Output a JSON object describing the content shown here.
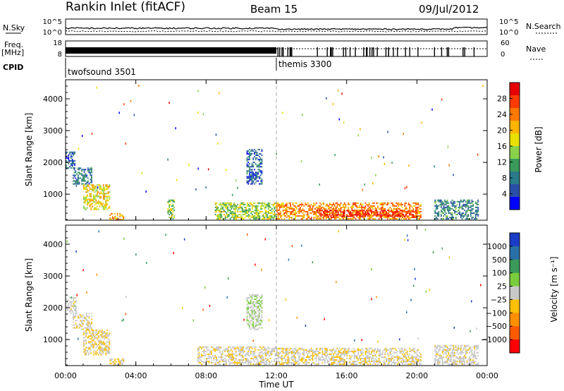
{
  "header": {
    "title": "Rankin Inlet (fitACF)",
    "beam": "Beam 15",
    "date": "09/Jul/2012"
  },
  "top_panels": {
    "nsky_label": "N.Sky",
    "nsky_ticks": [
      "10^5",
      "10^0"
    ],
    "nsearch_label": "N.Search",
    "nsearch_ticks": [
      "10^5",
      "10^0"
    ],
    "freq_label": "Freq.",
    "freq_unit": "[MHz]",
    "freq_ticks": [
      "18",
      "8"
    ],
    "nave_label": "Nave",
    "nave_ticks": [
      "60",
      "0"
    ],
    "cpid_label": "CPID",
    "modes": [
      {
        "name": "twofsound 3501",
        "start_hour": 0
      },
      {
        "name": "themis 3300",
        "start_hour": 12
      }
    ]
  },
  "axes": {
    "x_ticks": [
      "00:00",
      "04:00",
      "08:00",
      "12:00",
      "16:00",
      "20:00",
      "00:00"
    ],
    "xlabel": "Time UT",
    "ylabel": "Slant Range [km]",
    "y_ticks": [
      "4000",
      "3000",
      "2000",
      "1000"
    ]
  },
  "colorbars": {
    "power": {
      "label": "Power [dB]",
      "ticks": [
        "28",
        "24",
        "20",
        "16",
        "12",
        "8",
        "4"
      ],
      "colors": [
        "#0000ff",
        "#2a4fa8",
        "#2a7a8a",
        "#3a9a5a",
        "#8ad24a",
        "#e8e000",
        "#ffb400",
        "#ff7800",
        "#ff3c00",
        "#e80000"
      ]
    },
    "velocity": {
      "label": "Velocity [m s⁻¹]",
      "ticks": [
        "1000",
        "500",
        "100",
        "25",
        "−25",
        "−100",
        "−500",
        "−1000"
      ],
      "colors": [
        "#ff0000",
        "#ff5a00",
        "#ff9000",
        "#ffc000",
        "#c8c8c8",
        "#7acc3c",
        "#3a9a5a",
        "#2a70a8",
        "#1a3cc8"
      ]
    }
  },
  "chart_data": [
    {
      "type": "heatmap",
      "title": "Power",
      "xlabel": "Time UT",
      "ylabel": "Slant Range [km]",
      "xlim": [
        0,
        24
      ],
      "ylim": [
        180,
        4600
      ],
      "colorbar_range": [
        0,
        30
      ],
      "regions": [
        {
          "t0": 0.0,
          "t1": 0.5,
          "r0": 1800,
          "r1": 2300,
          "value": 5
        },
        {
          "t0": 0.4,
          "t1": 1.5,
          "r0": 1300,
          "r1": 1800,
          "value": 7
        },
        {
          "t0": 1.0,
          "t1": 2.5,
          "r0": 500,
          "r1": 1300,
          "value": 17
        },
        {
          "t0": 2.5,
          "t1": 3.3,
          "r0": 180,
          "r1": 400,
          "value": 20
        },
        {
          "t0": 5.8,
          "t1": 6.2,
          "r0": 200,
          "r1": 800,
          "value": 14
        },
        {
          "t0": 10.3,
          "t1": 11.2,
          "r0": 1300,
          "r1": 2400,
          "value": 6
        },
        {
          "t0": 8.5,
          "t1": 12.0,
          "r0": 200,
          "r1": 700,
          "value": 14
        },
        {
          "t0": 12.0,
          "t1": 20.2,
          "r0": 200,
          "r1": 700,
          "value": 22
        },
        {
          "t0": 14.3,
          "t1": 20.0,
          "r0": 280,
          "r1": 480,
          "value": 28
        },
        {
          "t0": 21.0,
          "t1": 23.5,
          "r0": 200,
          "r1": 800,
          "value": 8
        }
      ]
    },
    {
      "type": "heatmap",
      "title": "Velocity",
      "xlabel": "Time UT",
      "ylabel": "Slant Range [km]",
      "xlim": [
        0,
        24
      ],
      "ylim": [
        180,
        4600
      ],
      "colorbar_range": [
        -1000,
        1000
      ],
      "regions": [
        {
          "t0": 0.0,
          "t1": 0.6,
          "r0": 1800,
          "r1": 2300,
          "value": 0
        },
        {
          "t0": 0.4,
          "t1": 1.5,
          "r0": 1300,
          "r1": 1800,
          "value": -50
        },
        {
          "t0": 1.0,
          "t1": 2.5,
          "r0": 500,
          "r1": 1300,
          "value": -100
        },
        {
          "t0": 2.5,
          "t1": 3.3,
          "r0": 180,
          "r1": 400,
          "value": -150
        },
        {
          "t0": 10.3,
          "t1": 11.2,
          "r0": 1300,
          "r1": 2400,
          "value": 80
        },
        {
          "t0": 7.5,
          "t1": 12.0,
          "r0": 200,
          "r1": 750,
          "value": -60
        },
        {
          "t0": 12.0,
          "t1": 20.2,
          "r0": 200,
          "r1": 700,
          "value": -70
        },
        {
          "t0": 21.0,
          "t1": 23.5,
          "r0": 200,
          "r1": 800,
          "value": -30
        }
      ]
    }
  ]
}
